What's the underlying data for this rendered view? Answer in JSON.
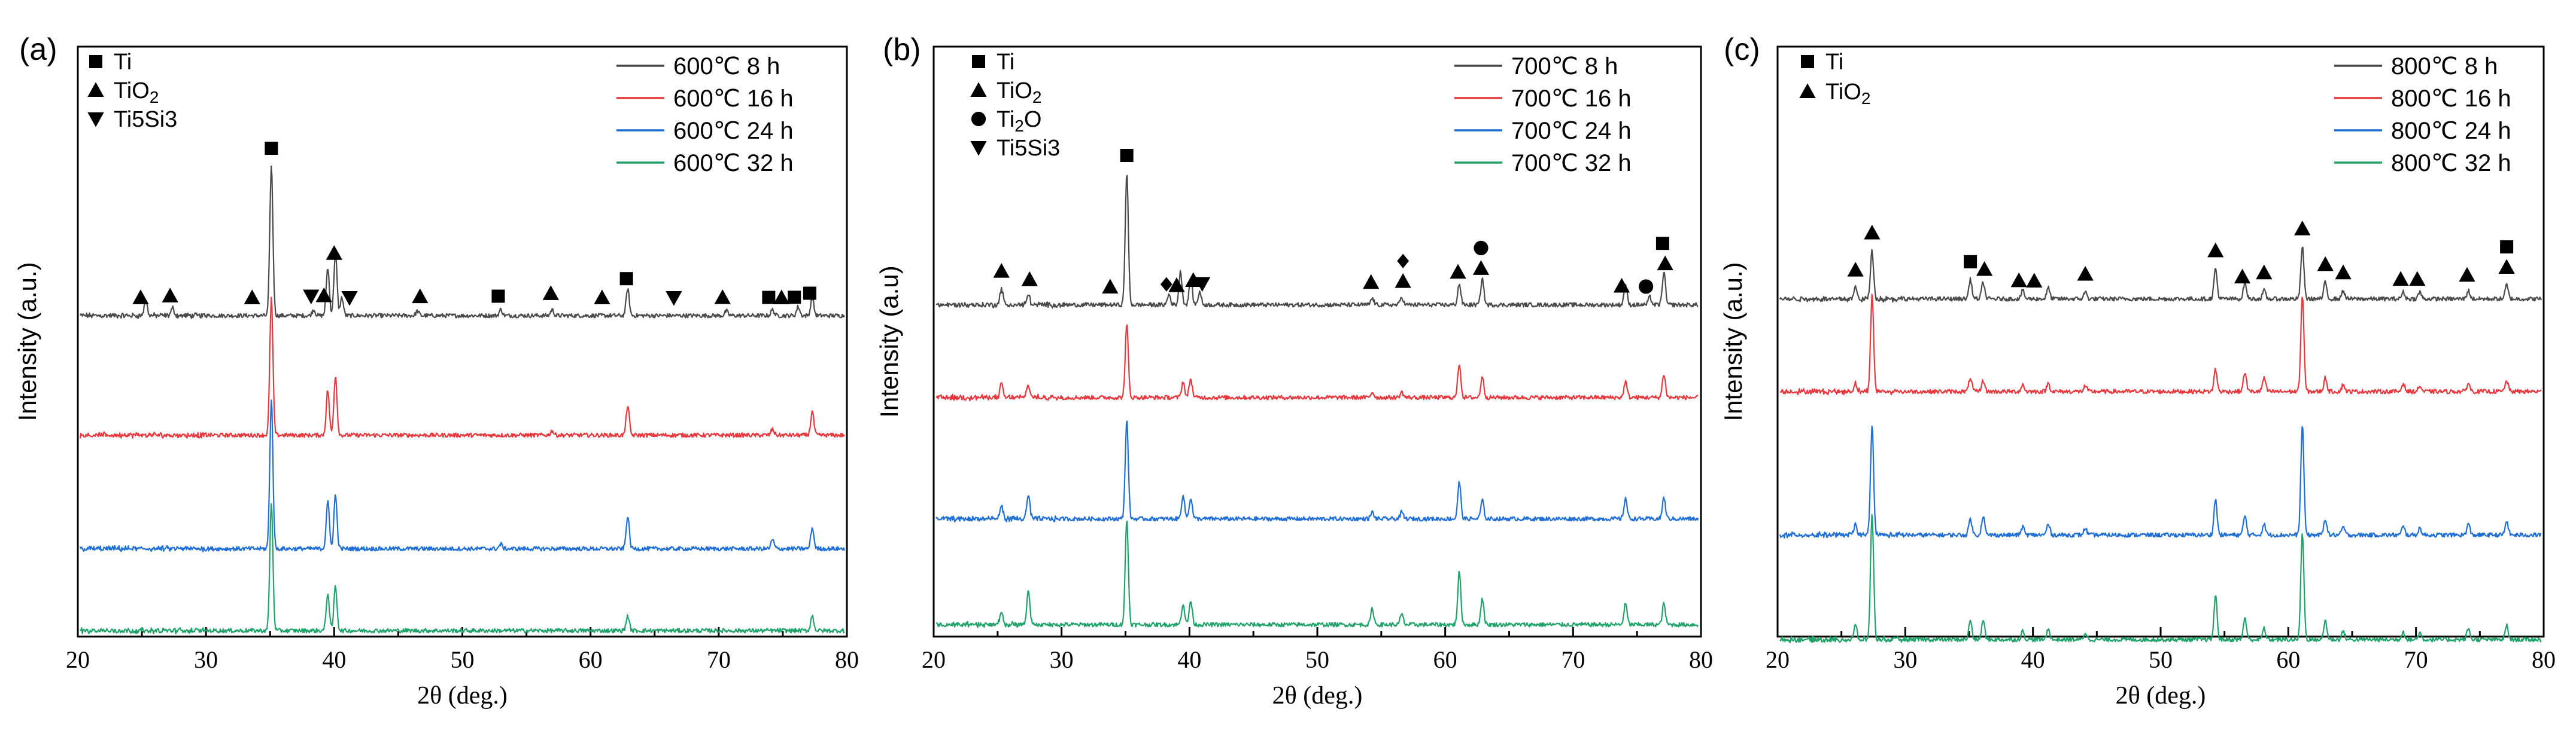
{
  "figure": {
    "x_label": "2θ (deg.)",
    "y_label_a": "Intensity (a.u.)",
    "y_label_b": "Intensity (a.u)",
    "y_label_c": "Intensity (a.u.)"
  },
  "chart_data": [
    {
      "panel": "(a)",
      "type": "line",
      "xlabel": "2θ (deg.)",
      "ylabel": "Intensity (a.u.)",
      "xlim": [
        20,
        80
      ],
      "xticks": [
        "20",
        "30",
        "40",
        "50",
        "60",
        "70",
        "80"
      ],
      "phase_legend": [
        "Ti",
        "TiO2",
        "Ti5Si3"
      ],
      "series": [
        {
          "name": "600℃  8 h",
          "color": "#4a4a4a",
          "peaks": [
            [
              25.3,
              0.1
            ],
            [
              27.4,
              0.05
            ],
            [
              35.1,
              1.0
            ],
            [
              38.4,
              0.04
            ],
            [
              39.5,
              0.32
            ],
            [
              40.1,
              0.42
            ],
            [
              40.6,
              0.12
            ],
            [
              46.5,
              0.03
            ],
            [
              53.0,
              0.04
            ],
            [
              57.0,
              0.04
            ],
            [
              62.9,
              0.18
            ],
            [
              70.6,
              0.03
            ],
            [
              74.2,
              0.04
            ],
            [
              76.2,
              0.06
            ],
            [
              77.3,
              0.12
            ]
          ]
        },
        {
          "name": "600℃  16 h",
          "color": "#e8383d",
          "peaks": [
            [
              35.1,
              0.92
            ],
            [
              39.5,
              0.3
            ],
            [
              40.1,
              0.4
            ],
            [
              57.0,
              0.03
            ],
            [
              62.9,
              0.2
            ],
            [
              74.2,
              0.04
            ],
            [
              77.3,
              0.16
            ]
          ]
        },
        {
          "name": "600℃  24 h",
          "color": "#1f6fd6",
          "peaks": [
            [
              35.1,
              1.0
            ],
            [
              39.5,
              0.32
            ],
            [
              40.1,
              0.36
            ],
            [
              53.0,
              0.03
            ],
            [
              62.9,
              0.22
            ],
            [
              74.2,
              0.06
            ],
            [
              77.3,
              0.14
            ]
          ]
        },
        {
          "name": "600℃  32 h",
          "color": "#1fa36a",
          "peaks": [
            [
              35.1,
              0.85
            ],
            [
              39.5,
              0.25
            ],
            [
              40.1,
              0.3
            ],
            [
              62.9,
              0.1
            ],
            [
              77.3,
              0.1
            ]
          ]
        }
      ],
      "markers": [
        {
          "sym": "sq",
          "x": 35.1
        },
        {
          "sym": "tri",
          "x": 24.9
        },
        {
          "sym": "tri",
          "x": 27.2
        },
        {
          "sym": "tri",
          "x": 33.6
        },
        {
          "sym": "tri",
          "x": 39.2
        },
        {
          "sym": "tri",
          "x": 40.0
        },
        {
          "sym": "inv",
          "x": 38.2
        },
        {
          "sym": "inv",
          "x": 41.2
        },
        {
          "sym": "tri",
          "x": 46.7
        },
        {
          "sym": "sq",
          "x": 52.8
        },
        {
          "sym": "tri",
          "x": 56.9
        },
        {
          "sym": "tri",
          "x": 60.9
        },
        {
          "sym": "sq",
          "x": 62.8
        },
        {
          "sym": "inv",
          "x": 66.5
        },
        {
          "sym": "tri",
          "x": 70.3
        },
        {
          "sym": "sq",
          "x": 73.9
        },
        {
          "sym": "tri",
          "x": 74.9
        },
        {
          "sym": "sq",
          "x": 75.9
        },
        {
          "sym": "sq",
          "x": 77.1
        }
      ]
    },
    {
      "panel": "(b)",
      "type": "line",
      "xlabel": "2θ (deg.)",
      "ylabel": "Intensity (a.u)",
      "xlim": [
        20,
        80
      ],
      "xticks": [
        "20",
        "30",
        "40",
        "50",
        "60",
        "70",
        "80"
      ],
      "phase_legend": [
        "Ti",
        "TiO2",
        "Ti2O",
        "Ti5Si3"
      ],
      "series": [
        {
          "name": "700℃  8 h",
          "color": "#4a4a4a",
          "peaks": [
            [
              25.3,
              0.12
            ],
            [
              27.4,
              0.08
            ],
            [
              35.1,
              1.0
            ],
            [
              38.4,
              0.08
            ],
            [
              39.3,
              0.25
            ],
            [
              40.1,
              0.2
            ],
            [
              40.8,
              0.1
            ],
            [
              54.3,
              0.05
            ],
            [
              56.6,
              0.06
            ],
            [
              61.1,
              0.16
            ],
            [
              62.9,
              0.2
            ],
            [
              74.1,
              0.15
            ],
            [
              76.0,
              0.06
            ],
            [
              77.1,
              0.25
            ]
          ]
        },
        {
          "name": "700℃  16 h",
          "color": "#e8383d",
          "peaks": [
            [
              25.3,
              0.1
            ],
            [
              27.4,
              0.1
            ],
            [
              35.1,
              0.55
            ],
            [
              39.5,
              0.12
            ],
            [
              40.1,
              0.14
            ],
            [
              54.3,
              0.04
            ],
            [
              56.6,
              0.04
            ],
            [
              61.1,
              0.26
            ],
            [
              62.9,
              0.16
            ],
            [
              74.1,
              0.12
            ],
            [
              77.1,
              0.18
            ]
          ]
        },
        {
          "name": "700℃  24 h",
          "color": "#1f6fd6",
          "peaks": [
            [
              25.3,
              0.1
            ],
            [
              27.4,
              0.18
            ],
            [
              35.1,
              0.75
            ],
            [
              39.5,
              0.18
            ],
            [
              40.1,
              0.16
            ],
            [
              54.3,
              0.05
            ],
            [
              56.6,
              0.05
            ],
            [
              61.1,
              0.28
            ],
            [
              62.9,
              0.14
            ],
            [
              74.1,
              0.16
            ],
            [
              77.1,
              0.16
            ]
          ]
        },
        {
          "name": "700℃  32 h",
          "color": "#1fa36a",
          "peaks": [
            [
              25.3,
              0.1
            ],
            [
              27.4,
              0.25
            ],
            [
              35.1,
              0.8
            ],
            [
              39.5,
              0.16
            ],
            [
              40.1,
              0.18
            ],
            [
              54.3,
              0.12
            ],
            [
              56.6,
              0.08
            ],
            [
              61.1,
              0.4
            ],
            [
              62.9,
              0.2
            ],
            [
              74.1,
              0.16
            ],
            [
              77.1,
              0.16
            ]
          ]
        }
      ],
      "markers": [
        {
          "sym": "sq",
          "x": 35.1
        },
        {
          "sym": "tri",
          "x": 25.3
        },
        {
          "sym": "tri",
          "x": 27.5
        },
        {
          "sym": "tri",
          "x": 33.8
        },
        {
          "sym": "dia",
          "x": 38.2
        },
        {
          "sym": "tri",
          "x": 39.0
        },
        {
          "sym": "tri",
          "x": 40.3
        },
        {
          "sym": "inv",
          "x": 41.0
        },
        {
          "sym": "tri",
          "x": 54.2
        },
        {
          "sym": "tri",
          "x": 56.7
        },
        {
          "sym": "dia",
          "x": 56.7
        },
        {
          "sym": "tri",
          "x": 61.0
        },
        {
          "sym": "tri",
          "x": 62.8
        },
        {
          "sym": "cir",
          "x": 62.8
        },
        {
          "sym": "cir",
          "x": 75.7
        },
        {
          "sym": "tri",
          "x": 73.8
        },
        {
          "sym": "tri",
          "x": 77.2
        },
        {
          "sym": "sq",
          "x": 77.0
        }
      ]
    },
    {
      "panel": "(c)",
      "type": "line",
      "xlabel": "2θ (deg.)",
      "ylabel": "Intensity (a.u.)",
      "xlim": [
        20,
        80
      ],
      "xticks": [
        "20",
        "30",
        "40",
        "50",
        "60",
        "70",
        "80"
      ],
      "phase_legend": [
        "Ti",
        "TiO2"
      ],
      "series": [
        {
          "name": "800℃  8 h",
          "color": "#4a4a4a",
          "peaks": [
            [
              26.1,
              0.08
            ],
            [
              27.4,
              0.35
            ],
            [
              35.1,
              0.14
            ],
            [
              36.1,
              0.12
            ],
            [
              39.2,
              0.06
            ],
            [
              41.2,
              0.08
            ],
            [
              44.1,
              0.05
            ],
            [
              54.3,
              0.22
            ],
            [
              56.6,
              0.12
            ],
            [
              58.1,
              0.06
            ],
            [
              61.1,
              0.38
            ],
            [
              62.9,
              0.12
            ],
            [
              64.3,
              0.06
            ],
            [
              69.0,
              0.05
            ],
            [
              70.3,
              0.05
            ],
            [
              74.1,
              0.06
            ],
            [
              77.1,
              0.1
            ]
          ]
        },
        {
          "name": "800℃  16 h",
          "color": "#e8383d",
          "peaks": [
            [
              26.1,
              0.06
            ],
            [
              27.4,
              0.7
            ],
            [
              35.1,
              0.1
            ],
            [
              36.1,
              0.08
            ],
            [
              39.2,
              0.05
            ],
            [
              41.2,
              0.06
            ],
            [
              44.1,
              0.04
            ],
            [
              54.3,
              0.16
            ],
            [
              56.6,
              0.14
            ],
            [
              58.1,
              0.1
            ],
            [
              61.1,
              0.7
            ],
            [
              62.9,
              0.1
            ],
            [
              64.3,
              0.05
            ],
            [
              69.0,
              0.06
            ],
            [
              70.3,
              0.04
            ],
            [
              74.1,
              0.06
            ],
            [
              77.1,
              0.08
            ]
          ]
        },
        {
          "name": "800℃  24 h",
          "color": "#1f6fd6",
          "peaks": [
            [
              26.1,
              0.08
            ],
            [
              27.4,
              0.8
            ],
            [
              35.1,
              0.12
            ],
            [
              36.1,
              0.14
            ],
            [
              39.2,
              0.06
            ],
            [
              41.2,
              0.08
            ],
            [
              44.1,
              0.05
            ],
            [
              54.3,
              0.26
            ],
            [
              56.6,
              0.14
            ],
            [
              58.1,
              0.08
            ],
            [
              61.1,
              0.8
            ],
            [
              62.9,
              0.12
            ],
            [
              64.3,
              0.06
            ],
            [
              69.0,
              0.06
            ],
            [
              70.3,
              0.05
            ],
            [
              74.1,
              0.08
            ],
            [
              77.1,
              0.1
            ]
          ]
        },
        {
          "name": "800℃  32 h",
          "color": "#1fa36a",
          "peaks": [
            [
              26.1,
              0.1
            ],
            [
              27.4,
              0.92
            ],
            [
              35.1,
              0.14
            ],
            [
              36.1,
              0.14
            ],
            [
              39.2,
              0.06
            ],
            [
              41.2,
              0.08
            ],
            [
              44.1,
              0.05
            ],
            [
              54.3,
              0.32
            ],
            [
              56.6,
              0.16
            ],
            [
              58.1,
              0.08
            ],
            [
              61.1,
              0.78
            ],
            [
              62.9,
              0.14
            ],
            [
              64.3,
              0.06
            ],
            [
              69.0,
              0.06
            ],
            [
              70.3,
              0.05
            ],
            [
              74.1,
              0.08
            ],
            [
              77.1,
              0.1
            ]
          ]
        }
      ],
      "markers": [
        {
          "sym": "tri",
          "x": 26.1
        },
        {
          "sym": "tri",
          "x": 27.4
        },
        {
          "sym": "sq",
          "x": 35.1
        },
        {
          "sym": "tri",
          "x": 36.2
        },
        {
          "sym": "tri",
          "x": 38.9
        },
        {
          "sym": "tri",
          "x": 40.1
        },
        {
          "sym": "tri",
          "x": 44.1
        },
        {
          "sym": "tri",
          "x": 54.3
        },
        {
          "sym": "tri",
          "x": 56.4
        },
        {
          "sym": "tri",
          "x": 58.1
        },
        {
          "sym": "tri",
          "x": 61.1
        },
        {
          "sym": "tri",
          "x": 62.9
        },
        {
          "sym": "tri",
          "x": 64.3
        },
        {
          "sym": "tri",
          "x": 68.8
        },
        {
          "sym": "tri",
          "x": 70.1
        },
        {
          "sym": "tri",
          "x": 74.0
        },
        {
          "sym": "tri",
          "x": 77.1
        },
        {
          "sym": "sq",
          "x": 77.1
        }
      ]
    }
  ],
  "panels": [
    {
      "label": "(a)",
      "phases": [
        {
          "symbol": "sq",
          "name": "Ti",
          "sub": ""
        },
        {
          "symbol": "tri",
          "name": "TiO",
          "sub": "2"
        },
        {
          "symbol": "inv",
          "name": "Ti5Si3",
          "sub": ""
        }
      ],
      "series_legend": [
        "600℃  8 h",
        "600℃  16 h",
        "600℃  24 h",
        "600℃  32 h"
      ]
    },
    {
      "label": "(b)",
      "phases": [
        {
          "symbol": "sq",
          "name": "Ti",
          "sub": ""
        },
        {
          "symbol": "tri",
          "name": "TiO",
          "sub": "2"
        },
        {
          "symbol": "cir",
          "name": "Ti",
          "sub": "2",
          "post": "O"
        },
        {
          "symbol": "inv",
          "name": "Ti5Si3",
          "sub": ""
        }
      ],
      "series_legend": [
        "700℃  8 h",
        "700℃  16 h",
        "700℃  24 h",
        "700℃  32 h"
      ]
    },
    {
      "label": "(c)",
      "phases": [
        {
          "symbol": "sq",
          "name": "Ti",
          "sub": ""
        },
        {
          "symbol": "tri",
          "name": "TiO",
          "sub": "2"
        }
      ],
      "series_legend": [
        "800℃  8 h",
        "800℃  16 h",
        "800℃  24 h",
        "800℃  32 h"
      ]
    }
  ]
}
